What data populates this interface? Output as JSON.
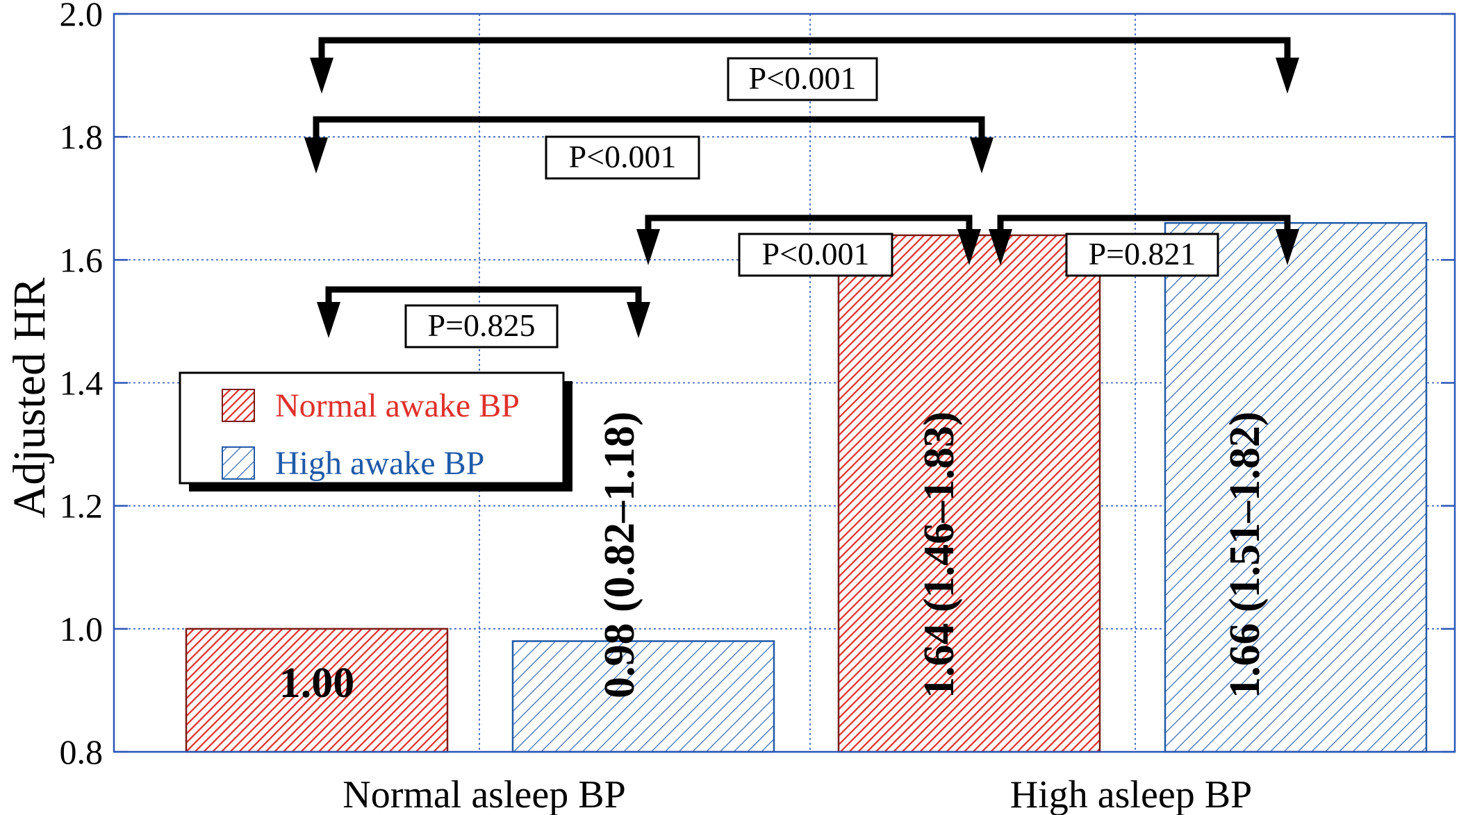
{
  "chart_data": {
    "type": "bar",
    "ylabel": "Adjusted HR",
    "ylim": [
      0.8,
      2.0
    ],
    "yticks": [
      "0.8",
      "1.0",
      "1.2",
      "1.4",
      "1.6",
      "1.8",
      "2.0"
    ],
    "grid": true,
    "categories": [
      "Normal asleep BP",
      "High asleep BP"
    ],
    "series": [
      {
        "name": "Normal awake BP",
        "color": "#e0302a",
        "pattern": "dense-diagonal",
        "values": [
          1.0,
          1.64
        ],
        "labels": [
          "1.00",
          "1.64 (1.46–1.83)"
        ]
      },
      {
        "name": "High awake BP",
        "color": "#1f5aa8",
        "pattern": "sparse-diagonal",
        "values": [
          0.98,
          1.66
        ],
        "labels": [
          "0.98 (0.82–1.18)",
          "1.66 (1.51–1.82)"
        ]
      }
    ],
    "legend_position": "middle-left",
    "comparisons": [
      {
        "from": [
          0,
          0
        ],
        "to": [
          1,
          1
        ],
        "text": "P<0.001"
      },
      {
        "from": [
          0,
          0
        ],
        "to": [
          1,
          0
        ],
        "text": "P<0.001"
      },
      {
        "from": [
          0,
          1
        ],
        "to": [
          1,
          0
        ],
        "text": "P<0.001"
      },
      {
        "from": [
          1,
          0
        ],
        "to": [
          1,
          1
        ],
        "text": "P=0.821"
      },
      {
        "from": [
          0,
          0
        ],
        "to": [
          0,
          1
        ],
        "text": "P=0.825"
      }
    ]
  }
}
